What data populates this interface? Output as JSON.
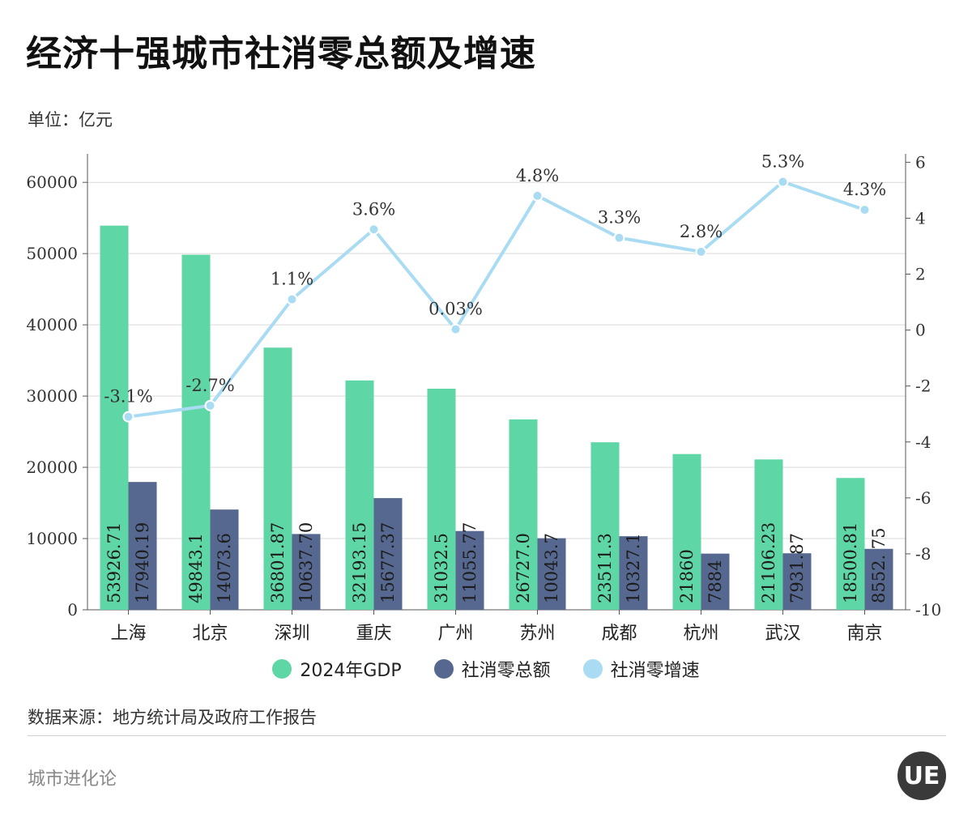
{
  "header": {
    "title": "经济十强城市社消零总额及增速",
    "unit": "单位：亿元"
  },
  "footer": {
    "source": "数据来源：地方统计局及政府工作报告",
    "brand": "城市进化论",
    "logo_text": "UE"
  },
  "colors": {
    "gdp": "#5fd6a5",
    "retail": "#56688f",
    "growth": "#a9dcf3",
    "grid": "#d9d9d9",
    "axis": "#555555"
  },
  "chart_data": {
    "type": "bar",
    "categories": [
      "上海",
      "北京",
      "深圳",
      "重庆",
      "广州",
      "苏州",
      "成都",
      "杭州",
      "武汉",
      "南京"
    ],
    "series": [
      {
        "name": "2024年GDP",
        "type": "bar",
        "axis": "left",
        "values": [
          53926.71,
          49843.1,
          36801.87,
          32193.15,
          31032.5,
          26727.0,
          23511.3,
          21860,
          21106.23,
          18500.81
        ],
        "labels": [
          "53926.71",
          "49843.1",
          "36801.87",
          "32193.15",
          "31032.5",
          "26727.0",
          "23511.3",
          "21860",
          "21106.23",
          "18500.81"
        ]
      },
      {
        "name": "社消零总额",
        "type": "bar",
        "axis": "left",
        "values": [
          17940.19,
          14073.6,
          10637.7,
          15677.37,
          11055.77,
          10043.7,
          10327.1,
          7884,
          7931.87,
          8552.75
        ],
        "labels": [
          "17940.19",
          "14073.6",
          "10637.70",
          "15677.37",
          "11055.77",
          "10043.7",
          "10327.1",
          "7884",
          "7931.87",
          "8552. 75"
        ]
      },
      {
        "name": "社消零增速",
        "type": "line",
        "axis": "right",
        "values": [
          -3.1,
          -2.7,
          1.1,
          3.6,
          0.03,
          4.8,
          3.3,
          2.8,
          5.3,
          4.3
        ],
        "labels": [
          "-3.1%",
          "-2.7%",
          "1.1%",
          "3.6%",
          "0.03%",
          "4.8%",
          "3.3%",
          "2.8%",
          "5.3%",
          "4.3%"
        ]
      }
    ],
    "y_left": {
      "range": [
        0,
        64000
      ],
      "ticks": [
        0,
        10000,
        20000,
        30000,
        40000,
        50000,
        60000
      ]
    },
    "y_right": {
      "range": [
        -10,
        6.3
      ],
      "ticks": [
        -10,
        -8,
        -6,
        -4,
        -2,
        0,
        2,
        4,
        6
      ]
    },
    "grid": true,
    "legend_position": "bottom"
  }
}
